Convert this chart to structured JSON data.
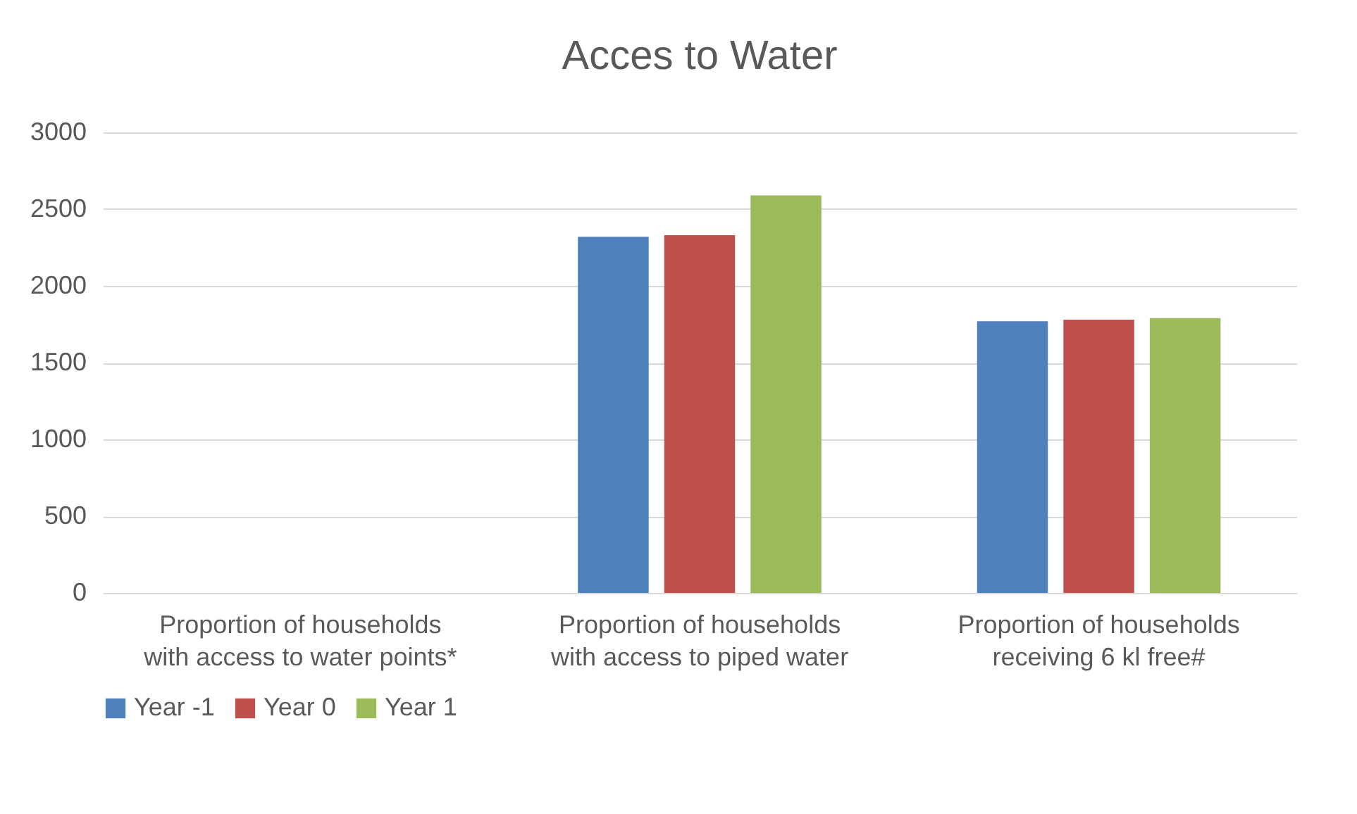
{
  "chart_data": {
    "type": "bar",
    "title": "Acces to Water",
    "categories": [
      "Proportion of households with access to water points*",
      "Proportion of households with access to piped water",
      "Proportion of households receiving 6 kl free#"
    ],
    "series": [
      {
        "name": "Year -1",
        "color": "#4f81bd",
        "values": [
          null,
          2320,
          1770
        ]
      },
      {
        "name": "Year 0",
        "color": "#c0504d",
        "values": [
          null,
          2330,
          1780
        ]
      },
      {
        "name": "Year 1",
        "color": "#9bbb59",
        "values": [
          null,
          2590,
          1790
        ]
      }
    ],
    "ylim": [
      0,
      3000
    ],
    "yticks": [
      0,
      500,
      1000,
      1500,
      2000,
      2500,
      3000
    ],
    "grid": "y",
    "legend": "bottom"
  }
}
